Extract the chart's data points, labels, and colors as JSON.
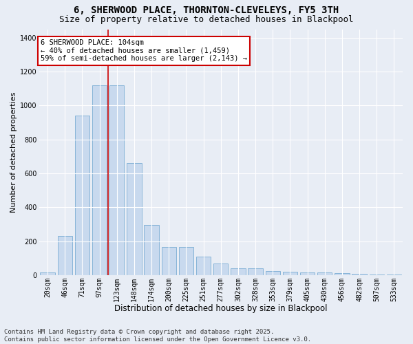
{
  "title": "6, SHERWOOD PLACE, THORNTON-CLEVELEYS, FY5 3TH",
  "subtitle": "Size of property relative to detached houses in Blackpool",
  "xlabel": "Distribution of detached houses by size in Blackpool",
  "ylabel": "Number of detached properties",
  "categories": [
    "20sqm",
    "46sqm",
    "71sqm",
    "97sqm",
    "123sqm",
    "148sqm",
    "174sqm",
    "200sqm",
    "225sqm",
    "251sqm",
    "277sqm",
    "302sqm",
    "328sqm",
    "353sqm",
    "379sqm",
    "405sqm",
    "430sqm",
    "456sqm",
    "482sqm",
    "507sqm",
    "533sqm"
  ],
  "values": [
    15,
    230,
    940,
    1120,
    1120,
    660,
    295,
    165,
    165,
    108,
    70,
    38,
    38,
    25,
    18,
    15,
    15,
    12,
    8,
    5,
    4
  ],
  "bar_color": "#c8d9ee",
  "bar_edge_color": "#7aadd4",
  "vline_x_index": 3.5,
  "vline_color": "#cc0000",
  "annotation_text": "6 SHERWOOD PLACE: 104sqm\n← 40% of detached houses are smaller (1,459)\n59% of semi-detached houses are larger (2,143) →",
  "annotation_box_color": "#ffffff",
  "annotation_box_edge": "#cc0000",
  "ylim": [
    0,
    1450
  ],
  "yticks": [
    0,
    200,
    400,
    600,
    800,
    1000,
    1200,
    1400
  ],
  "footer_line1": "Contains HM Land Registry data © Crown copyright and database right 2025.",
  "footer_line2": "Contains public sector information licensed under the Open Government Licence v3.0.",
  "bg_color": "#e8edf5",
  "plot_bg_color": "#e8edf5",
  "grid_color": "#ffffff",
  "title_fontsize": 10,
  "subtitle_fontsize": 9,
  "xlabel_fontsize": 8.5,
  "ylabel_fontsize": 8,
  "tick_fontsize": 7,
  "footer_fontsize": 6.5,
  "annot_fontsize": 7.5
}
